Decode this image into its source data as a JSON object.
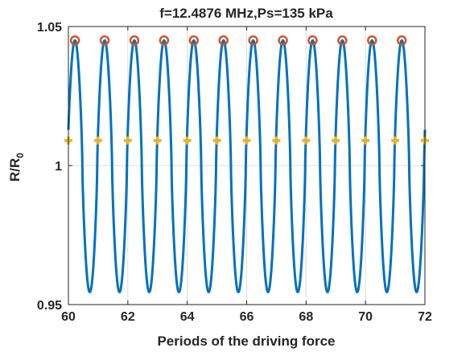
{
  "chart_data": {
    "type": "line",
    "title": "f=12.4876 MHz,Ps=135 kPa",
    "xlabel": "Periods of the driving force",
    "ylabel_main": "R/R",
    "ylabel_sub": "0",
    "xlim": [
      60,
      72
    ],
    "ylim": [
      0.95,
      1.05
    ],
    "xticks": [
      60,
      62,
      64,
      66,
      68,
      70,
      72
    ],
    "yticks": [
      0.95,
      1,
      1.05
    ],
    "xtick_labels": [
      "60",
      "62",
      "64",
      "66",
      "68",
      "70",
      "72"
    ],
    "ytick_labels": [
      "0.95",
      "1",
      "1.05"
    ],
    "grid": true,
    "series": [
      {
        "kind": "line",
        "color": "#0072BD",
        "oscillation": {
          "x_start": 60,
          "x_end": 72,
          "period": 1,
          "peak_phase": 0.22,
          "max": 1.045,
          "min": 0.9545,
          "sharpness": 1.35
        }
      },
      {
        "kind": "markers-circle",
        "color": "#D95319",
        "x": [
          60.22,
          61.22,
          62.22,
          63.22,
          64.22,
          65.22,
          66.22,
          67.22,
          68.22,
          69.22,
          70.22,
          71.22
        ],
        "y": [
          1.045,
          1.045,
          1.045,
          1.045,
          1.045,
          1.045,
          1.045,
          1.045,
          1.045,
          1.045,
          1.045,
          1.045
        ]
      },
      {
        "kind": "markers-plus",
        "color": "#EDB120",
        "x": [
          60,
          61,
          62,
          63,
          64,
          65,
          66,
          67,
          68,
          69,
          70,
          71,
          72
        ],
        "y": [
          1.009,
          1.009,
          1.009,
          1.009,
          1.009,
          1.009,
          1.009,
          1.009,
          1.009,
          1.009,
          1.009,
          1.009,
          1.009
        ]
      }
    ]
  }
}
